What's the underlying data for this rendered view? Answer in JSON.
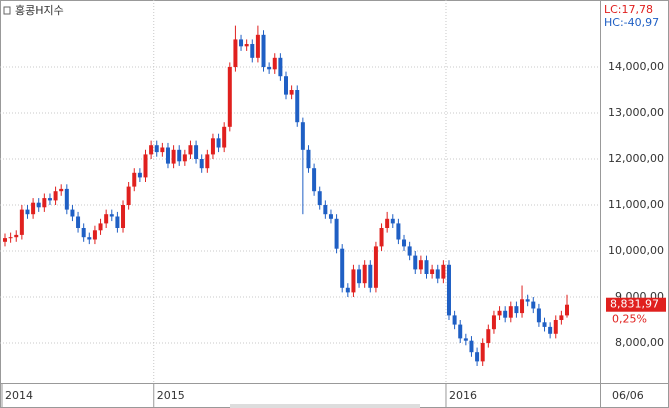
{
  "chart_data": {
    "type": "candlestick",
    "title": "홍콩H지수",
    "indicators": [
      "LC:17,78",
      "HC:-40,97"
    ],
    "categories": [
      "2014",
      null,
      null,
      null,
      null,
      null,
      null,
      null,
      null,
      null,
      null,
      null,
      null,
      null,
      null,
      null,
      null,
      null,
      null,
      null,
      null,
      null,
      null,
      null,
      null,
      null,
      null,
      "2015",
      null,
      null,
      null,
      null,
      null,
      null,
      null,
      null,
      null,
      null,
      null,
      null,
      null,
      null,
      null,
      null,
      null,
      null,
      null,
      null,
      null,
      null,
      null,
      null,
      null,
      null,
      null,
      null,
      null,
      null,
      null,
      null,
      null,
      null,
      null,
      null,
      null,
      null,
      null,
      null,
      null,
      null,
      null,
      null,
      null,
      null,
      null,
      null,
      null,
      null,
      null,
      "2016",
      null,
      null,
      null,
      null,
      null,
      null,
      null,
      null,
      null,
      null,
      null,
      null,
      null,
      null,
      null,
      null,
      null,
      null,
      null,
      null,
      null
    ],
    "end_label": "06/06",
    "open": [
      10200,
      10280,
      10300,
      10350,
      10900,
      10800,
      11050,
      10950,
      11150,
      11100,
      11300,
      11350,
      10900,
      10750,
      10500,
      10300,
      10250,
      10450,
      10600,
      10800,
      10750,
      10500,
      11000,
      11400,
      11700,
      11600,
      12100,
      12300,
      12150,
      12250,
      11900,
      12200,
      11950,
      12100,
      12300,
      12000,
      11800,
      12100,
      12450,
      12250,
      12700,
      14000,
      14600,
      14450,
      14500,
      14200,
      14700,
      14000,
      13950,
      14200,
      13800,
      13400,
      13500,
      12800,
      12200,
      11800,
      11300,
      11000,
      10800,
      10700,
      10050,
      9200,
      9100,
      9600,
      9300,
      9700,
      9200,
      10100,
      10500,
      10700,
      10600,
      10250,
      10100,
      9900,
      9600,
      9800,
      9500,
      9600,
      9400,
      9700,
      8600,
      8400,
      8100,
      8050,
      7800,
      7600,
      8000,
      8300,
      8600,
      8700,
      8550,
      8800,
      8650,
      8950,
      8900,
      8750,
      8450,
      8350,
      8200,
      8500,
      8600
    ],
    "high": [
      10380,
      10400,
      10450,
      11000,
      11000,
      11150,
      11150,
      11250,
      11250,
      11400,
      11450,
      11450,
      11000,
      10850,
      10600,
      10400,
      10550,
      10700,
      10900,
      10900,
      10850,
      11100,
      11500,
      11800,
      11800,
      12200,
      12400,
      12400,
      12350,
      12350,
      12300,
      12300,
      12200,
      12400,
      12400,
      12100,
      12200,
      12550,
      12550,
      12800,
      14100,
      14900,
      14700,
      14600,
      14600,
      14900,
      14800,
      14100,
      14300,
      14300,
      13900,
      13600,
      13600,
      12900,
      12300,
      11900,
      11400,
      11100,
      10900,
      10800,
      10150,
      9300,
      9700,
      9700,
      9800,
      9800,
      10200,
      10600,
      10850,
      10800,
      10700,
      10350,
      10200,
      10000,
      9900,
      9900,
      9700,
      9700,
      9800,
      9800,
      8700,
      8500,
      8200,
      8150,
      7900,
      8100,
      8400,
      8700,
      8800,
      8800,
      8900,
      8900,
      9250,
      9050,
      9000,
      8850,
      8550,
      8450,
      8600,
      8700,
      9050
    ],
    "low": [
      10100,
      10180,
      10200,
      10250,
      10700,
      10700,
      10850,
      10850,
      11000,
      11000,
      11200,
      10800,
      10650,
      10400,
      10200,
      10150,
      10150,
      10350,
      10500,
      10650,
      10400,
      10400,
      10900,
      11300,
      11500,
      11500,
      12000,
      12050,
      12050,
      11800,
      11800,
      11850,
      11850,
      12000,
      11900,
      11700,
      11700,
      12000,
      12150,
      12150,
      12600,
      13900,
      14350,
      14350,
      14100,
      14100,
      13900,
      13850,
      13850,
      13700,
      13300,
      13300,
      12700,
      10800,
      11700,
      11200,
      10900,
      10700,
      10600,
      9950,
      9100,
      9000,
      9000,
      9200,
      9200,
      9100,
      9100,
      10000,
      10400,
      10500,
      10150,
      10000,
      9800,
      9500,
      9500,
      9400,
      9400,
      9300,
      9300,
      8500,
      8300,
      8000,
      7950,
      7700,
      7500,
      7500,
      7900,
      8200,
      8500,
      8450,
      8450,
      8550,
      8550,
      8800,
      8650,
      8350,
      8250,
      8100,
      8100,
      8400,
      8550
    ],
    "close": [
      10280,
      10300,
      10350,
      10900,
      10800,
      11050,
      10950,
      11150,
      11100,
      11300,
      11350,
      10900,
      10750,
      10500,
      10300,
      10250,
      10450,
      10600,
      10800,
      10750,
      10500,
      11000,
      11400,
      11700,
      11600,
      12100,
      12300,
      12150,
      12250,
      11900,
      12200,
      11950,
      12100,
      12300,
      12000,
      11800,
      12100,
      12450,
      12250,
      12700,
      14000,
      14600,
      14450,
      14500,
      14200,
      14700,
      14000,
      13950,
      14200,
      13800,
      13400,
      13500,
      12800,
      12200,
      11800,
      11300,
      11000,
      10800,
      10700,
      10050,
      9200,
      9100,
      9600,
      9300,
      9700,
      9200,
      10100,
      10500,
      10700,
      10600,
      10250,
      10100,
      9900,
      9600,
      9800,
      9500,
      9600,
      9400,
      9700,
      8600,
      8400,
      8100,
      8050,
      7800,
      7600,
      8000,
      8300,
      8600,
      8700,
      8550,
      8800,
      8650,
      8950,
      8900,
      8750,
      8450,
      8350,
      8200,
      8500,
      8600,
      8831.97
    ],
    "last_label": "8,831,97",
    "change_label": "0,25%",
    "up_color": "#e0201e",
    "down_color": "#1f5fc4",
    "ylim": [
      7130,
      15457
    ],
    "yticks": [
      {
        "value": 8000,
        "label": "8,000,00"
      },
      {
        "value": 9000,
        "label": "9,000,00"
      },
      {
        "value": 10000,
        "label": "10,000,00"
      },
      {
        "value": 11000,
        "label": "11,000,00"
      },
      {
        "value": 12000,
        "label": "12,000,00"
      },
      {
        "value": 13000,
        "label": "13,000,00"
      },
      {
        "value": 14000,
        "label": "14,000,00"
      }
    ],
    "grid": true
  }
}
